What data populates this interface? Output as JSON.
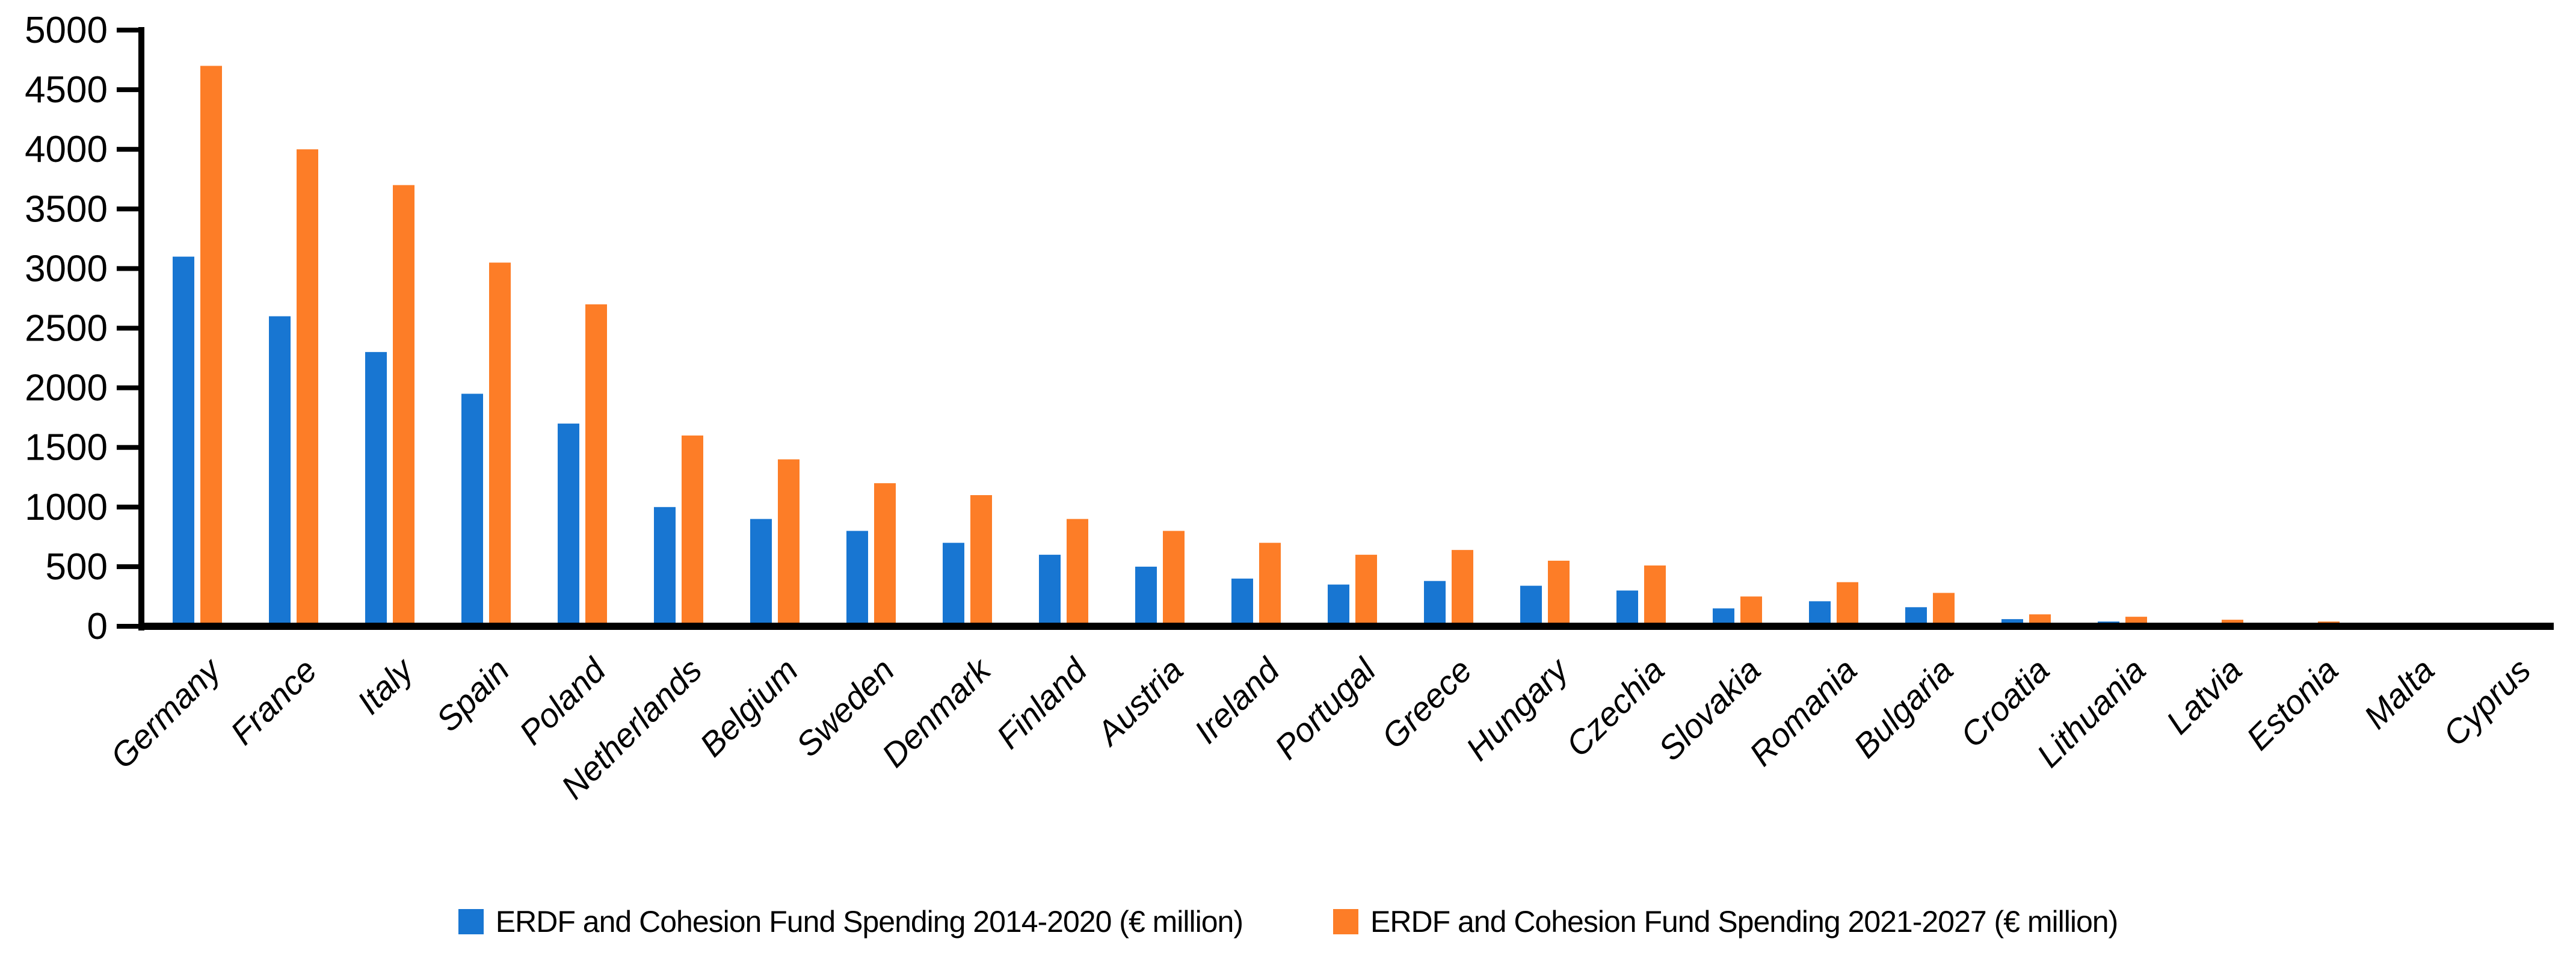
{
  "chart_data": {
    "type": "bar",
    "title": "",
    "xlabel": "",
    "ylabel": "",
    "ylim": [
      0,
      5000
    ],
    "ytick_step": 500,
    "yticks": [
      0,
      500,
      1000,
      1500,
      2000,
      2500,
      3000,
      3500,
      4000,
      4500,
      5000
    ],
    "grid": false,
    "legend_position": "bottom",
    "x_label_rotation": -45,
    "axis_color": "#000000",
    "background_color": "#ffffff",
    "categories": [
      "Germany",
      "France",
      "Italy",
      "Spain",
      "Poland",
      "Netherlands",
      "Belgium",
      "Sweden",
      "Denmark",
      "Finland",
      "Austria",
      "Ireland",
      "Portugal",
      "Greece",
      "Hungary",
      "Czechia",
      "Slovakia",
      "Romania",
      "Bulgaria",
      "Croatia",
      "Lithuania",
      "Latvia",
      "Estonia",
      "Malta",
      "Cyprus"
    ],
    "series": [
      {
        "name": "ERDF and Cohesion Fund Spending 2014-2020 (€ million)",
        "color": "#1876D2",
        "values": [
          3100,
          2600,
          2300,
          1950,
          1700,
          1000,
          900,
          800,
          700,
          600,
          500,
          400,
          350,
          380,
          340,
          300,
          150,
          210,
          160,
          60,
          40,
          30,
          20,
          10,
          8
        ]
      },
      {
        "name": "ERDF and Cohesion Fund Spending 2021-2027 (€ million)",
        "color": "#FD7D27",
        "values": [
          4700,
          4000,
          3700,
          3050,
          2700,
          1600,
          1400,
          1200,
          1100,
          900,
          800,
          700,
          600,
          640,
          550,
          510,
          250,
          370,
          280,
          100,
          80,
          55,
          40,
          20,
          18
        ]
      }
    ]
  }
}
